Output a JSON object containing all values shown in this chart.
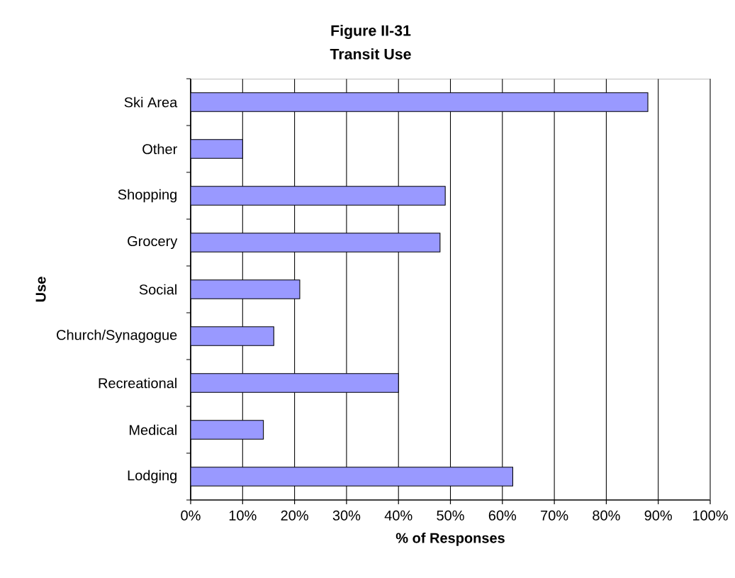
{
  "chart_data": {
    "type": "bar",
    "orientation": "horizontal",
    "title": "Figure II-31",
    "subtitle": "Transit Use",
    "xlabel": "% of Responses",
    "ylabel": "Use",
    "categories": [
      "Ski Area",
      "Other",
      "Shopping",
      "Grocery",
      "Social",
      "Church/Synagogue",
      "Recreational",
      "Medical",
      "Lodging"
    ],
    "values": [
      88,
      10,
      49,
      48,
      21,
      16,
      40,
      14,
      62
    ],
    "color": "#9999ff",
    "xlim": [
      0,
      100
    ],
    "xticks": [
      {
        "value": 0,
        "label": "0%"
      },
      {
        "value": 10,
        "label": "10%"
      },
      {
        "value": 20,
        "label": "20%"
      },
      {
        "value": 30,
        "label": "30%"
      },
      {
        "value": 40,
        "label": "40%"
      },
      {
        "value": 50,
        "label": "50%"
      },
      {
        "value": 60,
        "label": "60%"
      },
      {
        "value": 70,
        "label": "70%"
      },
      {
        "value": 80,
        "label": "80%"
      },
      {
        "value": 90,
        "label": "90%"
      },
      {
        "value": 100,
        "label": "100%"
      }
    ],
    "grid": "x"
  }
}
